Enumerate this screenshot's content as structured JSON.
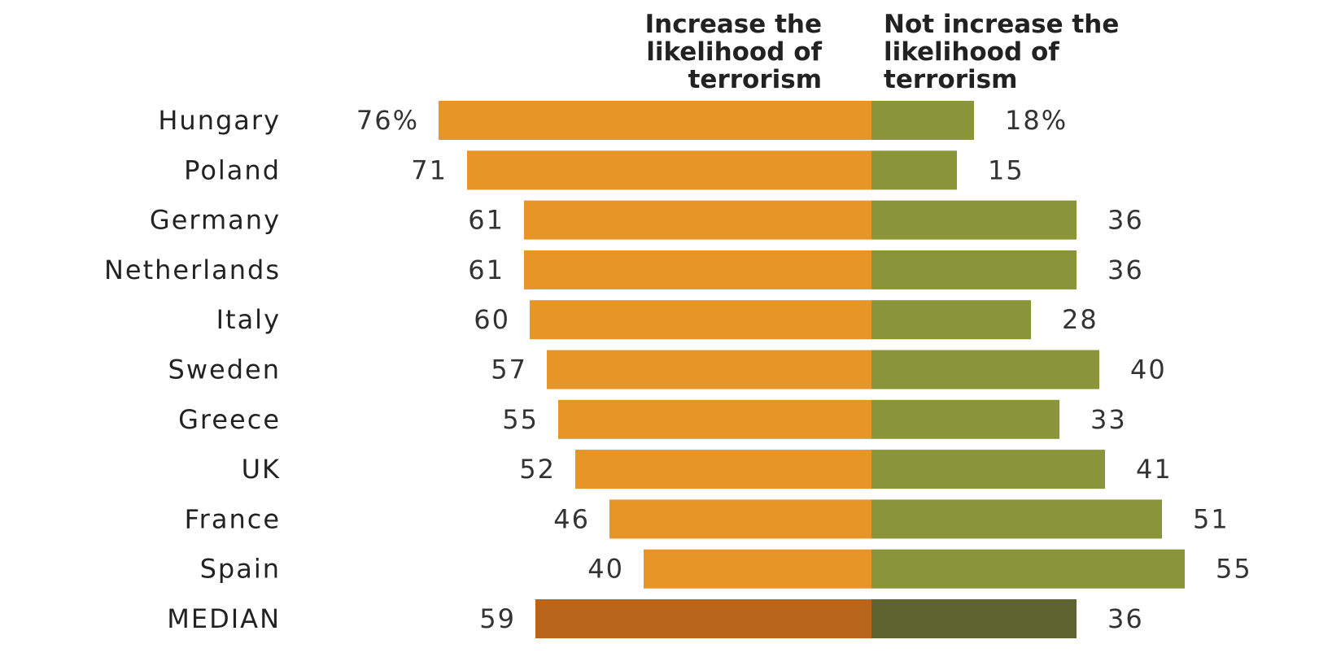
{
  "chart_data": {
    "type": "bar",
    "orientation": "horizontal-diverging",
    "legend": {
      "left_label_lines": [
        "Increase the",
        "likelihood of",
        "terrorism"
      ],
      "right_label_lines": [
        "Not increase the",
        "likelihood of",
        "terrorism"
      ]
    },
    "categories": [
      "Hungary",
      "Poland",
      "Germany",
      "Netherlands",
      "Italy",
      "Sweden",
      "Greece",
      "UK",
      "France",
      "Spain",
      "MEDIAN"
    ],
    "series": [
      {
        "name": "Increase the likelihood of terrorism",
        "values": [
          76,
          71,
          61,
          61,
          60,
          57,
          55,
          52,
          46,
          40,
          59
        ],
        "labels": [
          "76%",
          "71",
          "61",
          "61",
          "60",
          "57",
          "55",
          "52",
          "46",
          "40",
          "59"
        ]
      },
      {
        "name": "Not increase the likelihood of terrorism",
        "values": [
          18,
          15,
          36,
          36,
          28,
          40,
          33,
          41,
          51,
          55,
          36
        ],
        "labels": [
          "18%",
          "15",
          "36",
          "36",
          "28",
          "40",
          "33",
          "41",
          "51",
          "55",
          "36"
        ]
      }
    ],
    "colors": {
      "increase": "#e69526",
      "not_increase": "#8a9539",
      "median_increase": "#b9661c",
      "median_not_increase": "#5d6430"
    },
    "grid": false
  }
}
